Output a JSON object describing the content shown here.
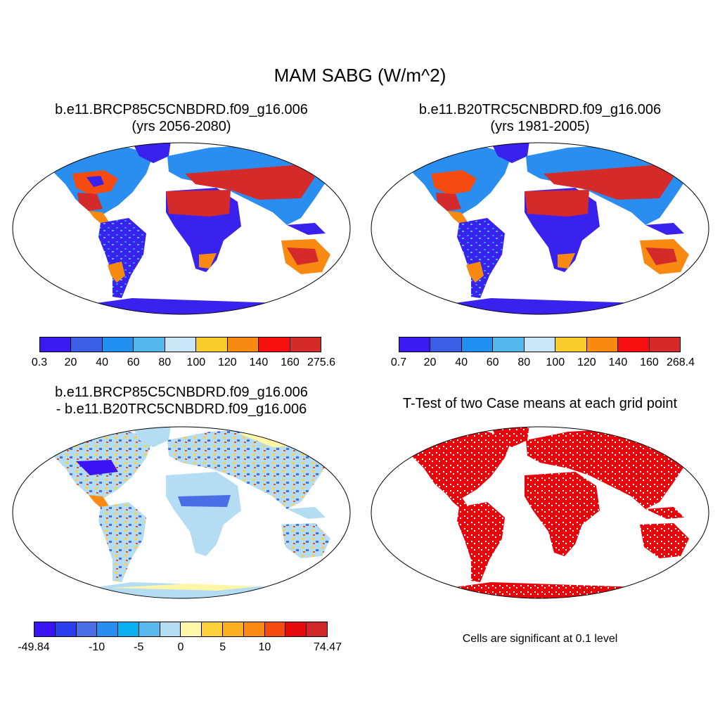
{
  "main_title": "MAM SABG (W/m^2)",
  "panels": {
    "p1": {
      "title_line1": "b.e11.BRCP85C5CNBDRD.f09_g16.006",
      "title_line2": "(yrs 2056-2080)"
    },
    "p2": {
      "title_line1": "b.e11.B20TRC5CNBDRD.f09_g16.006",
      "title_line2": "(yrs 1981-2005)"
    },
    "p3": {
      "title_line1": "b.e11.BRCP85C5CNBDRD.f09_g16.006",
      "title_line2": "- b.e11.B20TRC5CNBDRD.f09_g16.006"
    },
    "p4": {
      "title_line1": "T-Test of two Case means at each grid point",
      "note": "Cells are significant at 0.1 level"
    }
  },
  "colorbars": {
    "cb1": {
      "colors": [
        "#3a1af0",
        "#3a5ee6",
        "#1f8ff0",
        "#55b8ec",
        "#c8e6f6",
        "#f8cc2c",
        "#f88a12",
        "#f50f0f",
        "#d42a2a"
      ],
      "labels": [
        "0.3",
        "20",
        "40",
        "60",
        "80",
        "100",
        "120",
        "140",
        "160",
        "275.6"
      ]
    },
    "cb2": {
      "colors": [
        "#3a1af0",
        "#3a5ee6",
        "#1f8ff0",
        "#55b8ec",
        "#c8e6f6",
        "#f8cc2c",
        "#f88a12",
        "#f50f0f",
        "#d42a2a"
      ],
      "labels": [
        "0.7",
        "20",
        "40",
        "60",
        "80",
        "100",
        "120",
        "140",
        "160",
        "268.4"
      ]
    },
    "cb3": {
      "colors": [
        "#3a14f5",
        "#2a3ef0",
        "#4a6ee6",
        "#2a8ef0",
        "#0ab0f0",
        "#5ab8ee",
        "#b4dcf2",
        "#fff6a8",
        "#fcd03a",
        "#fbb024",
        "#f98a14",
        "#f54a10",
        "#e60a0a",
        "#d02828"
      ],
      "labels": [
        "-49.84",
        "-10",
        "-5",
        "0",
        "5",
        "10",
        "74.47"
      ]
    }
  },
  "significance_color": "#e8000a"
}
